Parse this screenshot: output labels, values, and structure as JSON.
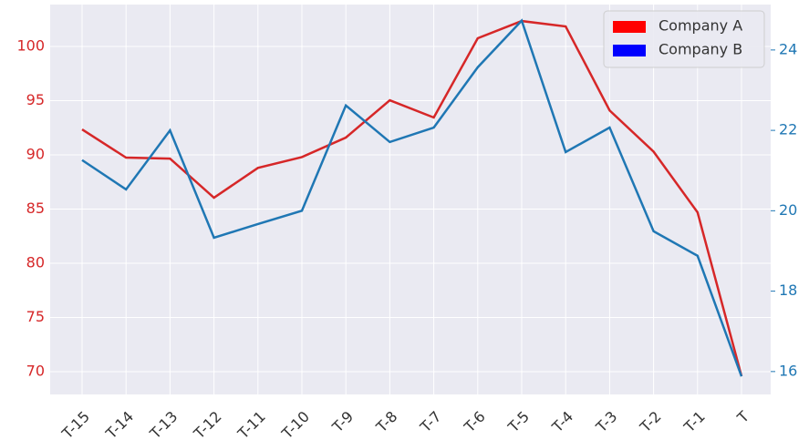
{
  "chart_data": {
    "type": "line",
    "categories": [
      "T-15",
      "T-14",
      "T-13",
      "T-12",
      "T-11",
      "T-10",
      "T-9",
      "T-8",
      "T-7",
      "T-6",
      "T-5",
      "T-4",
      "T-3",
      "T-2",
      "T-1",
      "T"
    ],
    "series": [
      {
        "name": "Company A",
        "color": "#d62728",
        "legend_color": "#ff0000",
        "axis": "y",
        "values": [
          92.35,
          89.75,
          89.66,
          86.05,
          88.8,
          89.8,
          91.6,
          95.04,
          93.45,
          100.76,
          102.35,
          101.85,
          94.1,
          90.3,
          84.7,
          69.6
        ]
      },
      {
        "name": "Company B",
        "color": "#1f77b4",
        "legend_color": "#0000ff",
        "axis": "y2",
        "values": [
          21.26,
          20.53,
          22.0,
          19.33,
          19.67,
          20.0,
          22.62,
          21.71,
          22.07,
          23.57,
          24.73,
          21.46,
          22.07,
          19.49,
          18.88,
          15.88
        ]
      }
    ],
    "ylim": [
      67.9,
      103.87
    ],
    "yticks": [
      70,
      75,
      80,
      85,
      90,
      95,
      100
    ],
    "y_tick_color": "#d62728",
    "y2lim": [
      15.43,
      25.13
    ],
    "y2ticks": [
      16,
      18,
      20,
      22,
      24
    ],
    "y2_tick_color": "#1f77b4",
    "grid": true,
    "legend": "upper right"
  }
}
